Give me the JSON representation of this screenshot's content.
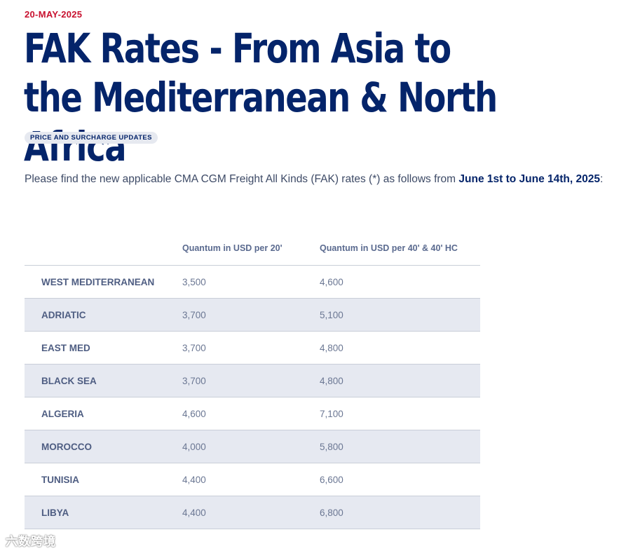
{
  "article": {
    "date": "20-MAY-2025",
    "title": "FAK Rates - From Asia to the Mediterranean & North Africa",
    "tag": "PRICE AND SURCHARGE UPDATES",
    "intro_text": "Please find the new applicable CMA CGM Freight All Kinds (FAK) rates (*) as follows from ",
    "intro_highlight": "June 1st to June 14th, 2025",
    "intro_end": ":"
  },
  "table": {
    "headers": [
      "",
      "Quantum in USD per 20'",
      "Quantum in USD per 40' & 40' HC"
    ],
    "rows": [
      {
        "region": "WEST MEDITERRANEAN",
        "rate20": "3,500",
        "rate40": "4,600"
      },
      {
        "region": "ADRIATIC",
        "rate20": "3,700",
        "rate40": "5,100"
      },
      {
        "region": "EAST MED",
        "rate20": "3,700",
        "rate40": "4,800"
      },
      {
        "region": "BLACK SEA",
        "rate20": "3,700",
        "rate40": "4,800"
      },
      {
        "region": "ALGERIA",
        "rate20": "4,600",
        "rate40": "7,100"
      },
      {
        "region": "MOROCCO",
        "rate20": "4,000",
        "rate40": "5,800"
      },
      {
        "region": "TUNISIA",
        "rate20": "4,400",
        "rate40": "6,600"
      },
      {
        "region": "LIBYA",
        "rate20": "4,400",
        "rate40": "6,800"
      }
    ]
  },
  "watermark": "六数跨境",
  "colors": {
    "date_red": "#c8102e",
    "title_navy": "#04246a",
    "row_shade": "#e6e9f1"
  }
}
